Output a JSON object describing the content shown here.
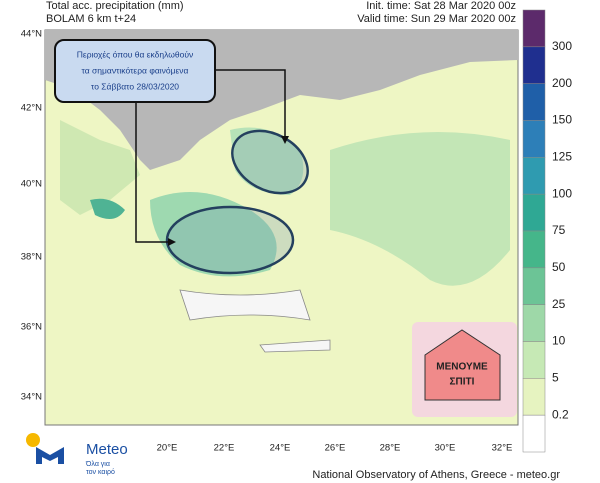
{
  "header": {
    "title": "Total acc. precipitation (mm)",
    "model": "BOLAM 6 km t+24",
    "init_time": "Init. time: Sat 28 Mar 2020 00z",
    "valid_time": "Valid time: Sun 29 Mar 2020 00z"
  },
  "map": {
    "lat_labels": [
      "44°N",
      "42°N",
      "40°N",
      "38°N",
      "36°N",
      "34°N"
    ],
    "lon_labels": [
      "20°E",
      "22°E",
      "24°E",
      "26°E",
      "28°E",
      "30°E",
      "32°E"
    ]
  },
  "annotation": {
    "lines": [
      "Περιοχές όπου θα εκδηλωθούν",
      "τα σημαντικότερα φαινόμενα",
      "το Σάββατο 28/03/2020"
    ]
  },
  "colorbar": {
    "labels": [
      "300",
      "200",
      "150",
      "125",
      "100",
      "75",
      "50",
      "25",
      "10",
      "5",
      "0.2"
    ]
  },
  "badge": {
    "lines": [
      "ΜΕΝΟΥΜΕ",
      "ΣΠΙΤΙ"
    ]
  },
  "logo": {
    "name": "Meteo",
    "tagline": [
      "Όλα για",
      "τον καιρό"
    ]
  },
  "footer": {
    "credit": "National Observatory of Athens, Greece - meteo.gr"
  }
}
